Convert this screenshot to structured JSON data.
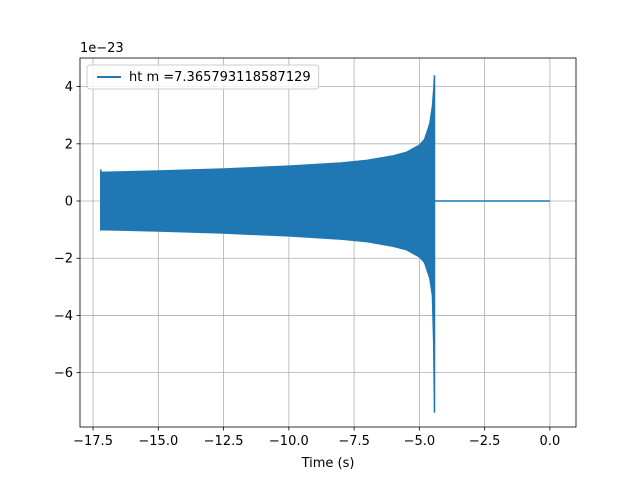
{
  "chart_data": {
    "type": "line",
    "title": "",
    "xlabel": "Time (s)",
    "ylabel": "",
    "y_offset_text": "1e−23",
    "xlim": [
      -18.0,
      1.0
    ],
    "ylim": [
      -7.9,
      5.0
    ],
    "grid": true,
    "legend_placement": "top-left",
    "x_ticks": [
      -17.5,
      -15.0,
      -12.5,
      -10.0,
      -7.5,
      -5.0,
      -2.5,
      0.0
    ],
    "x_tick_labels": [
      "−17.5",
      "−15.0",
      "−12.5",
      "−10.0",
      "−7.5",
      "−5.0",
      "−2.5",
      "0.0"
    ],
    "y_ticks": [
      -6,
      -4,
      -2,
      0,
      2,
      4
    ],
    "y_tick_labels": [
      "−6",
      "−4",
      "−2",
      "0",
      "2",
      "4"
    ],
    "series": [
      {
        "name": "ht m =7.365793118587129",
        "color": "#1f77b4",
        "envelope": {
          "x": [
            -17.2,
            -15.0,
            -12.5,
            -10.0,
            -8.0,
            -7.0,
            -6.0,
            -5.5,
            -5.0,
            -4.8,
            -4.6,
            -4.5,
            -4.45,
            -4.42
          ],
          "upper": [
            1.0,
            1.05,
            1.12,
            1.22,
            1.33,
            1.42,
            1.58,
            1.7,
            1.95,
            2.15,
            2.7,
            3.3,
            3.9,
            4.4
          ],
          "lower": [
            -1.0,
            -1.05,
            -1.12,
            -1.22,
            -1.33,
            -1.42,
            -1.58,
            -1.7,
            -1.95,
            -2.15,
            -2.7,
            -3.3,
            -5.0,
            -7.4
          ]
        },
        "post_merger": {
          "x": [
            -4.42,
            0.0
          ],
          "y": [
            0.0,
            0.0
          ]
        }
      }
    ]
  }
}
